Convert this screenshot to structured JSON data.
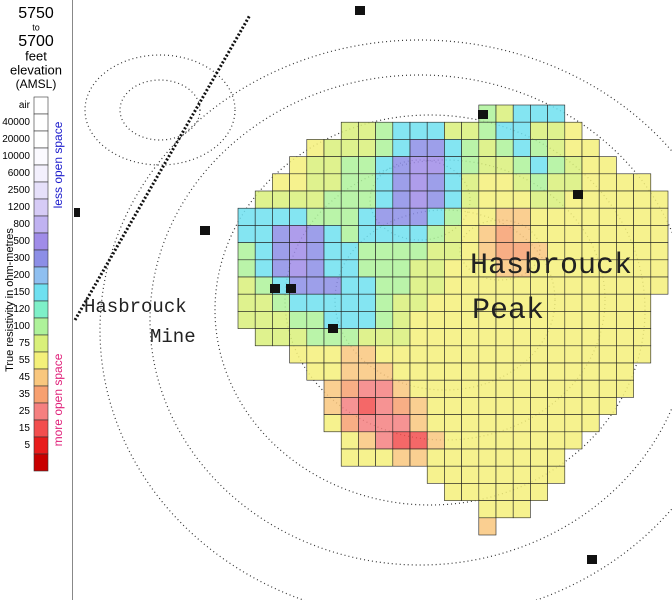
{
  "legend": {
    "elevation_top": "5750",
    "joiner": "to",
    "elevation_bottom": "5700",
    "unit": "feet",
    "measure": "elevation",
    "datum": "(AMSL)",
    "axis_title": "True resistivity in ohm-metres",
    "upper_note": "less open space",
    "lower_note": "more open space",
    "levels": [
      {
        "label": "air",
        "color": "#ffffff"
      },
      {
        "label": "40000",
        "value": 40000,
        "color": "#ffffff"
      },
      {
        "label": "20000",
        "value": 20000,
        "color": "#ffffff"
      },
      {
        "label": "10000",
        "value": 10000,
        "color": "#fbfaff"
      },
      {
        "label": "6000",
        "value": 6000,
        "color": "#f3f0fd"
      },
      {
        "label": "2500",
        "value": 2500,
        "color": "#e6e0fa"
      },
      {
        "label": "1200",
        "value": 1200,
        "color": "#d6cbf6"
      },
      {
        "label": "800",
        "value": 800,
        "color": "#c0b2f1"
      },
      {
        "label": "500",
        "value": 500,
        "color": "#a08ce8"
      },
      {
        "label": "300",
        "value": 300,
        "color": "#8c8ee6"
      },
      {
        "label": "200",
        "value": 200,
        "color": "#8fbff0"
      },
      {
        "label": "150",
        "value": 150,
        "color": "#6fe0f0"
      },
      {
        "label": "120",
        "value": 120,
        "color": "#7ef0c8"
      },
      {
        "label": "100",
        "value": 100,
        "color": "#aef29a"
      },
      {
        "label": "75",
        "value": 75,
        "color": "#d9f07a"
      },
      {
        "label": "55",
        "value": 55,
        "color": "#f4f07a"
      },
      {
        "label": "45",
        "value": 45,
        "color": "#f9c77e"
      },
      {
        "label": "35",
        "value": 35,
        "color": "#f7a070"
      },
      {
        "label": "25",
        "value": 25,
        "color": "#f58080"
      },
      {
        "label": "15",
        "value": 15,
        "color": "#f24e4e"
      },
      {
        "label": "5",
        "value": 5,
        "color": "#e81c1c"
      },
      {
        "label": null,
        "color": "#c80000"
      }
    ]
  },
  "map": {
    "labels": [
      "Hasbrouck",
      "Peak",
      "Hasbrouck",
      "Mine"
    ],
    "grid": [
      {
        "start": 14,
        "values": [
          100,
          75,
          150,
          150,
          150
        ]
      },
      {
        "start": 6,
        "values": [
          75,
          75,
          100,
          150,
          150,
          150,
          75,
          75,
          100,
          150,
          150,
          75,
          75,
          55
        ]
      },
      {
        "start": 4,
        "values": [
          55,
          75,
          75,
          75,
          100,
          150,
          300,
          300,
          150,
          100,
          75,
          100,
          150,
          100,
          75,
          55,
          55
        ]
      },
      {
        "start": 3,
        "values": [
          55,
          75,
          75,
          100,
          100,
          150,
          300,
          500,
          500,
          150,
          100,
          75,
          75,
          100,
          150,
          100,
          75,
          55,
          55
        ]
      },
      {
        "start": 2,
        "values": [
          55,
          55,
          75,
          75,
          100,
          100,
          150,
          300,
          500,
          300,
          150,
          75,
          55,
          55,
          75,
          100,
          75,
          75,
          55,
          55,
          55,
          55
        ]
      },
      {
        "start": 1,
        "values": [
          75,
          75,
          75,
          75,
          100,
          100,
          100,
          150,
          300,
          500,
          300,
          150,
          75,
          55,
          55,
          55,
          75,
          75,
          55,
          55,
          55,
          55,
          55,
          55
        ]
      },
      {
        "start": 0,
        "values": [
          150,
          150,
          150,
          150,
          100,
          100,
          100,
          150,
          300,
          300,
          300,
          150,
          100,
          55,
          55,
          45,
          45,
          55,
          55,
          55,
          55,
          55,
          55,
          55,
          55
        ]
      },
      {
        "start": 0,
        "values": [
          150,
          150,
          300,
          500,
          300,
          150,
          100,
          150,
          150,
          150,
          150,
          100,
          75,
          55,
          45,
          35,
          45,
          55,
          55,
          55,
          55,
          55,
          55,
          55,
          55
        ]
      },
      {
        "start": 0,
        "values": [
          100,
          150,
          300,
          500,
          300,
          150,
          150,
          100,
          100,
          100,
          100,
          75,
          75,
          55,
          45,
          35,
          35,
          45,
          55,
          55,
          55,
          55,
          55,
          55,
          55
        ]
      },
      {
        "start": 0,
        "values": [
          100,
          150,
          300,
          500,
          300,
          150,
          150,
          100,
          100,
          100,
          75,
          75,
          55,
          55,
          55,
          45,
          45,
          55,
          55,
          55,
          55,
          55,
          55,
          55,
          55
        ]
      },
      {
        "start": 0,
        "values": [
          75,
          100,
          150,
          300,
          300,
          300,
          150,
          150,
          100,
          100,
          75,
          75,
          55,
          55,
          55,
          55,
          55,
          55,
          55,
          55,
          55,
          55,
          55,
          55,
          55
        ]
      },
      {
        "start": 0,
        "values": [
          75,
          75,
          100,
          150,
          150,
          150,
          150,
          150,
          100,
          75,
          75,
          55,
          55,
          55,
          55,
          55,
          55,
          55,
          55,
          55,
          55,
          55,
          55,
          55
        ]
      },
      {
        "start": 0,
        "values": [
          75,
          75,
          75,
          100,
          100,
          150,
          150,
          150,
          100,
          75,
          55,
          55,
          55,
          55,
          55,
          55,
          55,
          55,
          55,
          55,
          55,
          55,
          55,
          55
        ]
      },
      {
        "start": 1,
        "values": [
          75,
          75,
          75,
          100,
          100,
          100,
          75,
          75,
          75,
          55,
          55,
          55,
          55,
          55,
          55,
          55,
          55,
          55,
          55,
          55,
          55,
          55,
          55
        ]
      },
      {
        "start": 3,
        "values": [
          55,
          55,
          55,
          45,
          45,
          55,
          55,
          55,
          55,
          55,
          55,
          55,
          55,
          55,
          55,
          55,
          55,
          55,
          55,
          55,
          55
        ]
      },
      {
        "start": 4,
        "values": [
          55,
          55,
          45,
          45,
          45,
          55,
          55,
          55,
          55,
          55,
          55,
          55,
          55,
          55,
          55,
          55,
          55,
          55,
          55
        ]
      },
      {
        "start": 5,
        "values": [
          45,
          35,
          25,
          25,
          45,
          55,
          55,
          55,
          55,
          55,
          55,
          55,
          55,
          55,
          55,
          55,
          55,
          55
        ]
      },
      {
        "start": 5,
        "values": [
          45,
          25,
          15,
          25,
          35,
          45,
          55,
          55,
          55,
          55,
          55,
          55,
          55,
          55,
          55,
          55,
          55
        ]
      },
      {
        "start": 5,
        "values": [
          55,
          35,
          25,
          25,
          25,
          45,
          55,
          55,
          55,
          55,
          55,
          55,
          55,
          55,
          55,
          55
        ]
      },
      {
        "start": 6,
        "values": [
          55,
          45,
          25,
          15,
          15,
          45,
          55,
          55,
          55,
          55,
          55,
          55,
          55,
          55
        ]
      },
      {
        "start": 6,
        "values": [
          55,
          55,
          55,
          45,
          45,
          55,
          55,
          55,
          55,
          55,
          55,
          55,
          55
        ]
      },
      {
        "start": 11,
        "values": [
          55,
          55,
          55,
          55,
          55,
          55,
          55,
          55
        ]
      },
      {
        "start": 12,
        "values": [
          55,
          55,
          55,
          55,
          55,
          55
        ]
      },
      {
        "start": 14,
        "values": [
          55,
          55,
          55
        ]
      },
      {
        "start": 14,
        "values": [
          45
        ]
      }
    ]
  }
}
